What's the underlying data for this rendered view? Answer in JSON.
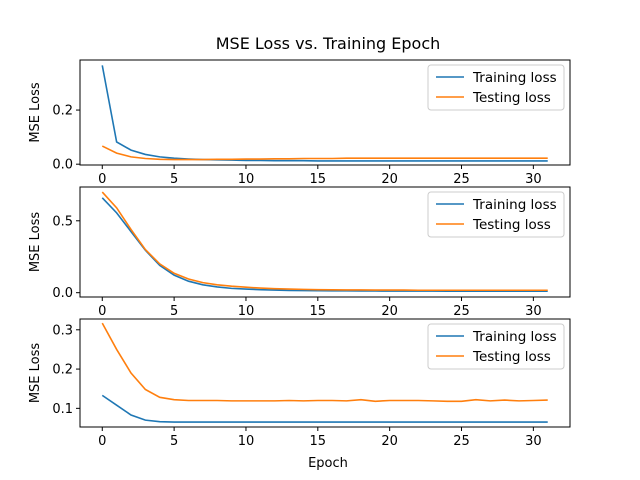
{
  "chart_data": {
    "type": "line",
    "title": "MSE Loss vs. Training Epoch",
    "xlabel": "Epoch",
    "colors": {
      "Training loss": "#1f77b4",
      "Testing loss": "#ff7f0e"
    },
    "panels": [
      {
        "ylabel": "MSE Loss",
        "xlim": [
          -1.55,
          32.55
        ],
        "ylim": [
          -0.003,
          0.385
        ],
        "xticks": [
          0,
          5,
          10,
          15,
          20,
          25,
          30
        ],
        "yticks": [
          0.0,
          0.2
        ],
        "ytick_labels": [
          "0.0",
          "0.2"
        ],
        "legend": "top-right",
        "x": [
          0,
          1,
          2,
          3,
          4,
          5,
          6,
          7,
          8,
          9,
          10,
          11,
          12,
          13,
          14,
          15,
          16,
          17,
          18,
          19,
          20,
          21,
          22,
          23,
          24,
          25,
          26,
          27,
          28,
          29,
          30,
          31
        ],
        "series": [
          {
            "name": "Training loss",
            "values": [
              0.365,
              0.082,
              0.052,
              0.036,
              0.027,
              0.022,
              0.019,
              0.017,
              0.016,
              0.015,
              0.014,
              0.014,
              0.013,
              0.013,
              0.013,
              0.012,
              0.012,
              0.012,
              0.012,
              0.012,
              0.012,
              0.012,
              0.012,
              0.012,
              0.012,
              0.012,
              0.012,
              0.012,
              0.012,
              0.012,
              0.012,
              0.012
            ]
          },
          {
            "name": "Testing loss",
            "values": [
              0.067,
              0.041,
              0.027,
              0.021,
              0.018,
              0.017,
              0.017,
              0.017,
              0.018,
              0.018,
              0.019,
              0.019,
              0.02,
              0.02,
              0.021,
              0.021,
              0.021,
              0.022,
              0.022,
              0.022,
              0.022,
              0.022,
              0.022,
              0.022,
              0.022,
              0.022,
              0.022,
              0.022,
              0.022,
              0.022,
              0.022,
              0.022
            ]
          }
        ]
      },
      {
        "ylabel": "MSE Loss",
        "xlim": [
          -1.55,
          32.55
        ],
        "ylim": [
          -0.03,
          0.735
        ],
        "xticks": [
          0,
          5,
          10,
          15,
          20,
          25,
          30
        ],
        "yticks": [
          0.0,
          0.5
        ],
        "ytick_labels": [
          "0.0",
          "0.5"
        ],
        "legend": "top-right",
        "x": [
          0,
          1,
          2,
          3,
          4,
          5,
          6,
          7,
          8,
          9,
          10,
          11,
          12,
          13,
          14,
          15,
          16,
          17,
          18,
          19,
          20,
          21,
          22,
          23,
          24,
          25,
          26,
          27,
          28,
          29,
          30,
          31
        ],
        "series": [
          {
            "name": "Training loss",
            "values": [
              0.66,
              0.555,
              0.425,
              0.295,
              0.19,
              0.122,
              0.08,
              0.055,
              0.04,
              0.03,
              0.025,
              0.021,
              0.018,
              0.016,
              0.015,
              0.014,
              0.013,
              0.013,
              0.012,
              0.012,
              0.011,
              0.011,
              0.011,
              0.011,
              0.01,
              0.01,
              0.01,
              0.01,
              0.01,
              0.01,
              0.01,
              0.01
            ]
          },
          {
            "name": "Testing loss",
            "values": [
              0.7,
              0.59,
              0.44,
              0.3,
              0.2,
              0.135,
              0.095,
              0.07,
              0.055,
              0.045,
              0.038,
              0.032,
              0.028,
              0.025,
              0.023,
              0.021,
              0.02,
              0.019,
              0.019,
              0.018,
              0.018,
              0.018,
              0.017,
              0.017,
              0.017,
              0.017,
              0.017,
              0.017,
              0.017,
              0.017,
              0.017,
              0.017
            ]
          }
        ]
      },
      {
        "ylabel": "MSE Loss",
        "xlim": [
          -1.55,
          32.55
        ],
        "ylim": [
          0.0525,
          0.3275
        ],
        "xticks": [
          0,
          5,
          10,
          15,
          20,
          25,
          30
        ],
        "yticks": [
          0.1,
          0.2,
          0.3
        ],
        "ytick_labels": [
          "0.1",
          "0.2",
          "0.3"
        ],
        "legend": "top-right",
        "x": [
          0,
          1,
          2,
          3,
          4,
          5,
          6,
          7,
          8,
          9,
          10,
          11,
          12,
          13,
          14,
          15,
          16,
          17,
          18,
          19,
          20,
          21,
          22,
          23,
          24,
          25,
          26,
          27,
          28,
          29,
          30,
          31
        ],
        "series": [
          {
            "name": "Training loss",
            "values": [
              0.133,
              0.108,
              0.083,
              0.07,
              0.066,
              0.065,
              0.065,
              0.065,
              0.065,
              0.065,
              0.065,
              0.065,
              0.065,
              0.065,
              0.065,
              0.065,
              0.065,
              0.065,
              0.065,
              0.065,
              0.065,
              0.065,
              0.065,
              0.065,
              0.065,
              0.065,
              0.065,
              0.065,
              0.065,
              0.065,
              0.065,
              0.065
            ]
          },
          {
            "name": "Testing loss",
            "values": [
              0.317,
              0.25,
              0.19,
              0.148,
              0.128,
              0.122,
              0.12,
              0.12,
              0.12,
              0.119,
              0.119,
              0.119,
              0.119,
              0.12,
              0.119,
              0.12,
              0.12,
              0.119,
              0.122,
              0.118,
              0.12,
              0.12,
              0.12,
              0.119,
              0.118,
              0.118,
              0.122,
              0.119,
              0.121,
              0.119,
              0.12,
              0.121
            ]
          }
        ]
      }
    ]
  }
}
